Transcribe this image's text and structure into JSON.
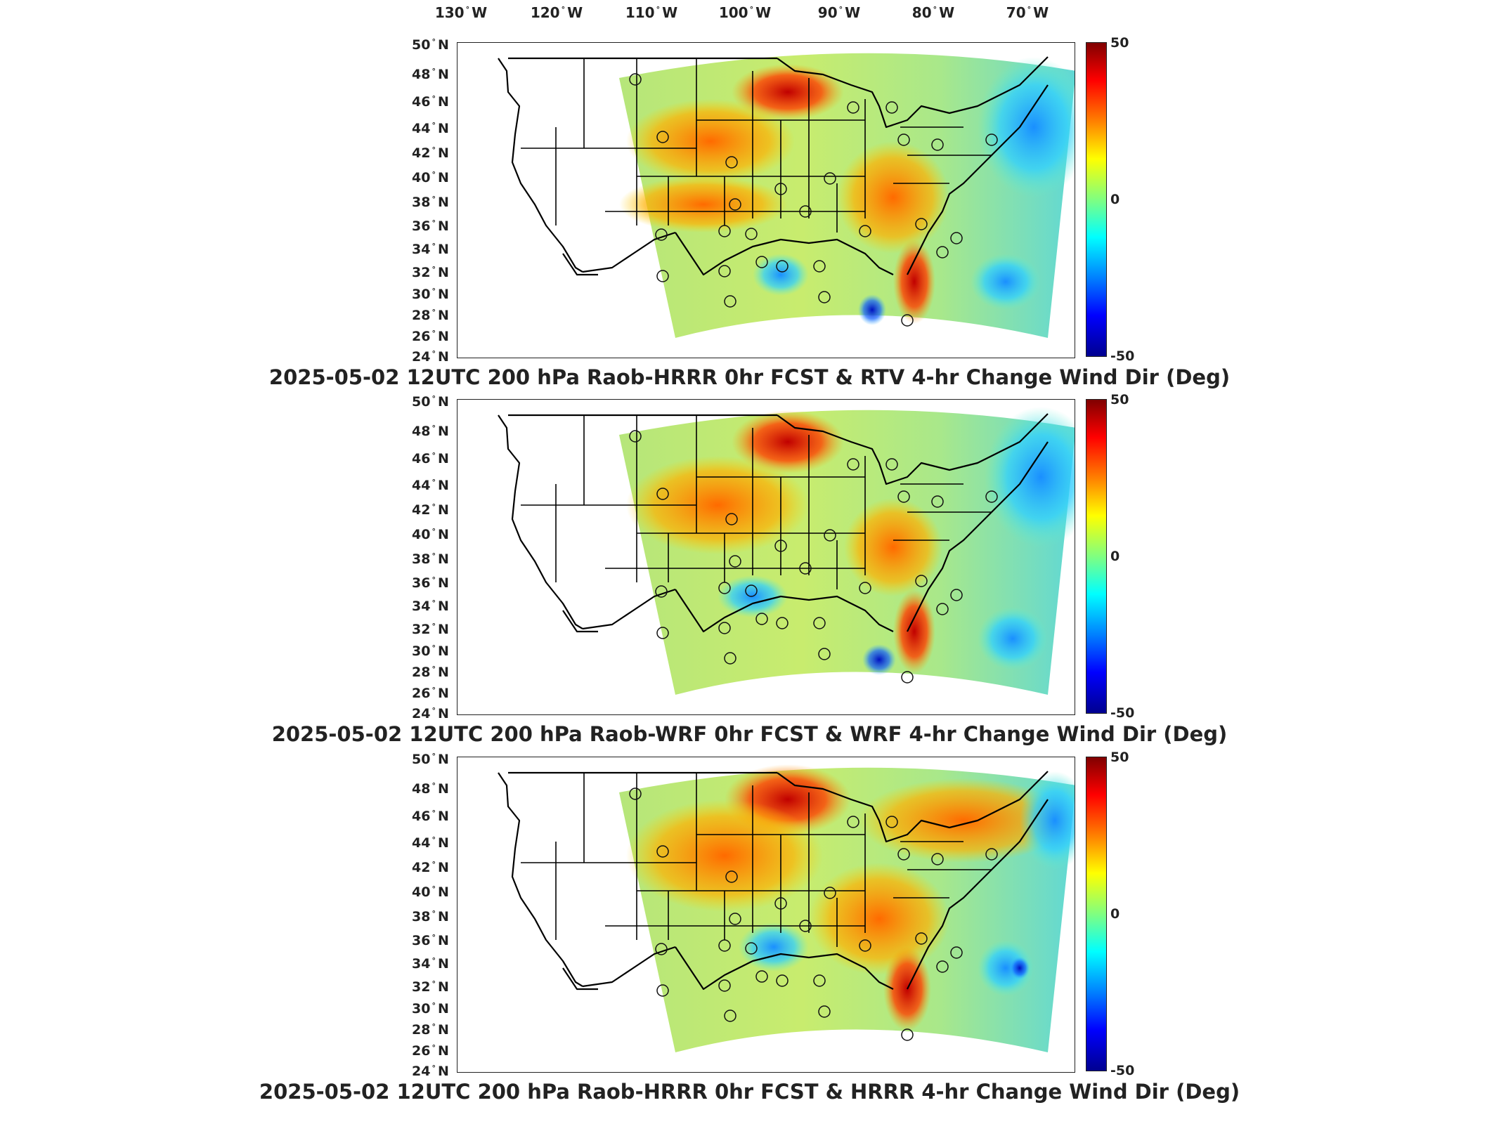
{
  "lon_labels": [
    {
      "text": "130",
      "suffix": "W"
    },
    {
      "text": "120",
      "suffix": "W"
    },
    {
      "text": "110",
      "suffix": "W"
    },
    {
      "text": "100",
      "suffix": "W"
    },
    {
      "text": "90",
      "suffix": "W"
    },
    {
      "text": "80",
      "suffix": "W"
    },
    {
      "text": "70",
      "suffix": "W"
    }
  ],
  "lat_labels": [
    "50",
    "48",
    "46",
    "44",
    "42",
    "40",
    "38",
    "36",
    "34",
    "32",
    "30",
    "28",
    "26",
    "24"
  ],
  "lat_suffix": "N",
  "colorbar": {
    "max": "50",
    "mid": "0",
    "min": "-50"
  },
  "panels": [
    {
      "title": "2025-05-02 12UTC 200 hPa Raob-HRRR 0hr FCST & RTV 4-hr Change Wind Dir (Deg)"
    },
    {
      "title": "2025-05-02 12UTC 200 hPa Raob-WRF 0hr FCST & WRF 4-hr Change Wind Dir (Deg)"
    },
    {
      "title": "2025-05-02 12UTC 200 hPa Raob-HRRR 0hr FCST & HRRR 4-hr Change Wind Dir (Deg)"
    }
  ],
  "colors": {
    "warm": "#d7191c",
    "hot": "#b00000",
    "neutral": "#9be07a",
    "cool": "#2ec7e0",
    "cold": "#1530c8"
  }
}
